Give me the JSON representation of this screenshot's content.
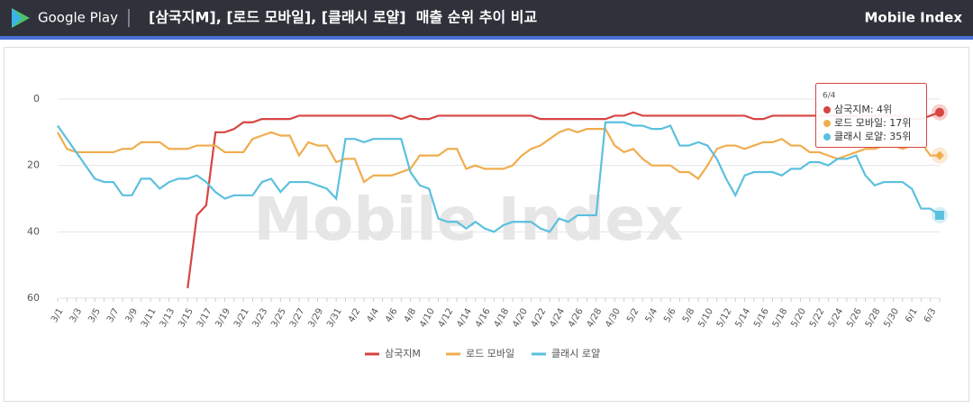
{
  "header": {
    "store": "Google Play",
    "title": "[삼국지M], [로드 모바일], [클래시 로얄]  매출 순위 추이 비교",
    "brand": "Mobile Index"
  },
  "chart_data": {
    "type": "line",
    "watermark": "Mobile Index",
    "ylim": [
      0,
      60
    ],
    "y_inverted": true,
    "yticks": [
      0,
      20,
      40,
      60
    ],
    "grid": true,
    "legend": "bottom",
    "categories": [
      "3/1",
      null,
      "3/3",
      null,
      "3/5",
      null,
      "3/7",
      null,
      "3/9",
      null,
      "3/11",
      null,
      "3/13",
      null,
      "3/15",
      null,
      "3/17",
      null,
      "3/19",
      null,
      "3/21",
      null,
      "3/23",
      null,
      "3/25",
      null,
      "3/27",
      null,
      "3/29",
      null,
      "3/31",
      null,
      "4/2",
      null,
      "4/4",
      null,
      "4/6",
      null,
      "4/8",
      null,
      "4/10",
      null,
      "4/12",
      null,
      "4/14",
      null,
      "4/16",
      null,
      "4/18",
      null,
      "4/20",
      null,
      "4/22",
      null,
      "4/24",
      null,
      "4/26",
      null,
      "4/28",
      null,
      "4/30",
      null,
      "5/2",
      null,
      "5/4",
      null,
      "5/6",
      null,
      "5/8",
      null,
      "5/10",
      null,
      "5/12",
      null,
      "5/14",
      null,
      "5/16",
      null,
      "5/18",
      null,
      "5/20",
      null,
      "5/22",
      null,
      "5/24",
      null,
      "5/26",
      null,
      "5/28",
      null,
      "5/30",
      null,
      "6/1",
      null,
      "6/3",
      null
    ],
    "series": [
      {
        "name": "삼국지M",
        "color": "#d64541",
        "marker": "circle",
        "values": [
          null,
          null,
          null,
          null,
          null,
          null,
          null,
          null,
          null,
          null,
          null,
          null,
          null,
          null,
          57,
          35,
          32,
          10,
          10,
          9,
          7,
          7,
          6,
          6,
          6,
          6,
          5,
          5,
          5,
          5,
          5,
          5,
          5,
          5,
          5,
          5,
          5,
          6,
          5,
          6,
          6,
          5,
          5,
          5,
          5,
          5,
          5,
          5,
          5,
          5,
          5,
          5,
          6,
          6,
          6,
          6,
          6,
          6,
          6,
          6,
          5,
          5,
          4,
          5,
          5,
          5,
          5,
          5,
          5,
          5,
          5,
          5,
          5,
          5,
          5,
          6,
          6,
          5,
          5,
          5,
          5,
          5,
          5,
          5,
          5,
          5,
          5,
          5,
          5,
          5,
          5,
          5,
          6,
          6,
          5,
          4
        ]
      },
      {
        "name": "로드 모바일",
        "color": "#f0ad4e",
        "marker": "diamond",
        "values": [
          10,
          15,
          16,
          16,
          16,
          16,
          16,
          15,
          15,
          13,
          13,
          13,
          15,
          15,
          15,
          14,
          14,
          14,
          16,
          16,
          16,
          12,
          11,
          10,
          11,
          11,
          17,
          13,
          14,
          14,
          19,
          18,
          18,
          25,
          23,
          23,
          23,
          22,
          21,
          17,
          17,
          17,
          15,
          15,
          21,
          20,
          21,
          21,
          21,
          20,
          17,
          15,
          14,
          12,
          10,
          9,
          10,
          9,
          9,
          9,
          14,
          16,
          15,
          18,
          20,
          20,
          20,
          22,
          22,
          24,
          20,
          15,
          14,
          14,
          15,
          14,
          13,
          13,
          12,
          14,
          14,
          16,
          16,
          17,
          18,
          17,
          16,
          15,
          15,
          14,
          14,
          15,
          14,
          13,
          17,
          17
        ]
      },
      {
        "name": "클래시 로얄",
        "color": "#5bc0de",
        "marker": "square",
        "values": [
          8,
          12,
          16,
          20,
          24,
          25,
          25,
          29,
          29,
          24,
          24,
          27,
          25,
          24,
          24,
          23,
          25,
          28,
          30,
          29,
          29,
          29,
          25,
          24,
          28,
          25,
          25,
          25,
          26,
          27,
          30,
          12,
          12,
          13,
          12,
          12,
          12,
          12,
          22,
          26,
          27,
          36,
          37,
          37,
          39,
          37,
          39,
          40,
          38,
          37,
          37,
          37,
          39,
          40,
          36,
          37,
          35,
          35,
          35,
          7,
          7,
          7,
          8,
          8,
          9,
          9,
          8,
          14,
          14,
          13,
          14,
          18,
          24,
          29,
          23,
          22,
          22,
          22,
          23,
          21,
          21,
          19,
          19,
          20,
          18,
          18,
          17,
          23,
          26,
          25,
          25,
          25,
          27,
          33,
          33,
          35
        ]
      }
    ],
    "tooltip": {
      "title": "6/4",
      "items": [
        "삼국지M: 4위",
        "로드 모바일: 17위",
        "클래시 로얄: 35위"
      ]
    }
  }
}
